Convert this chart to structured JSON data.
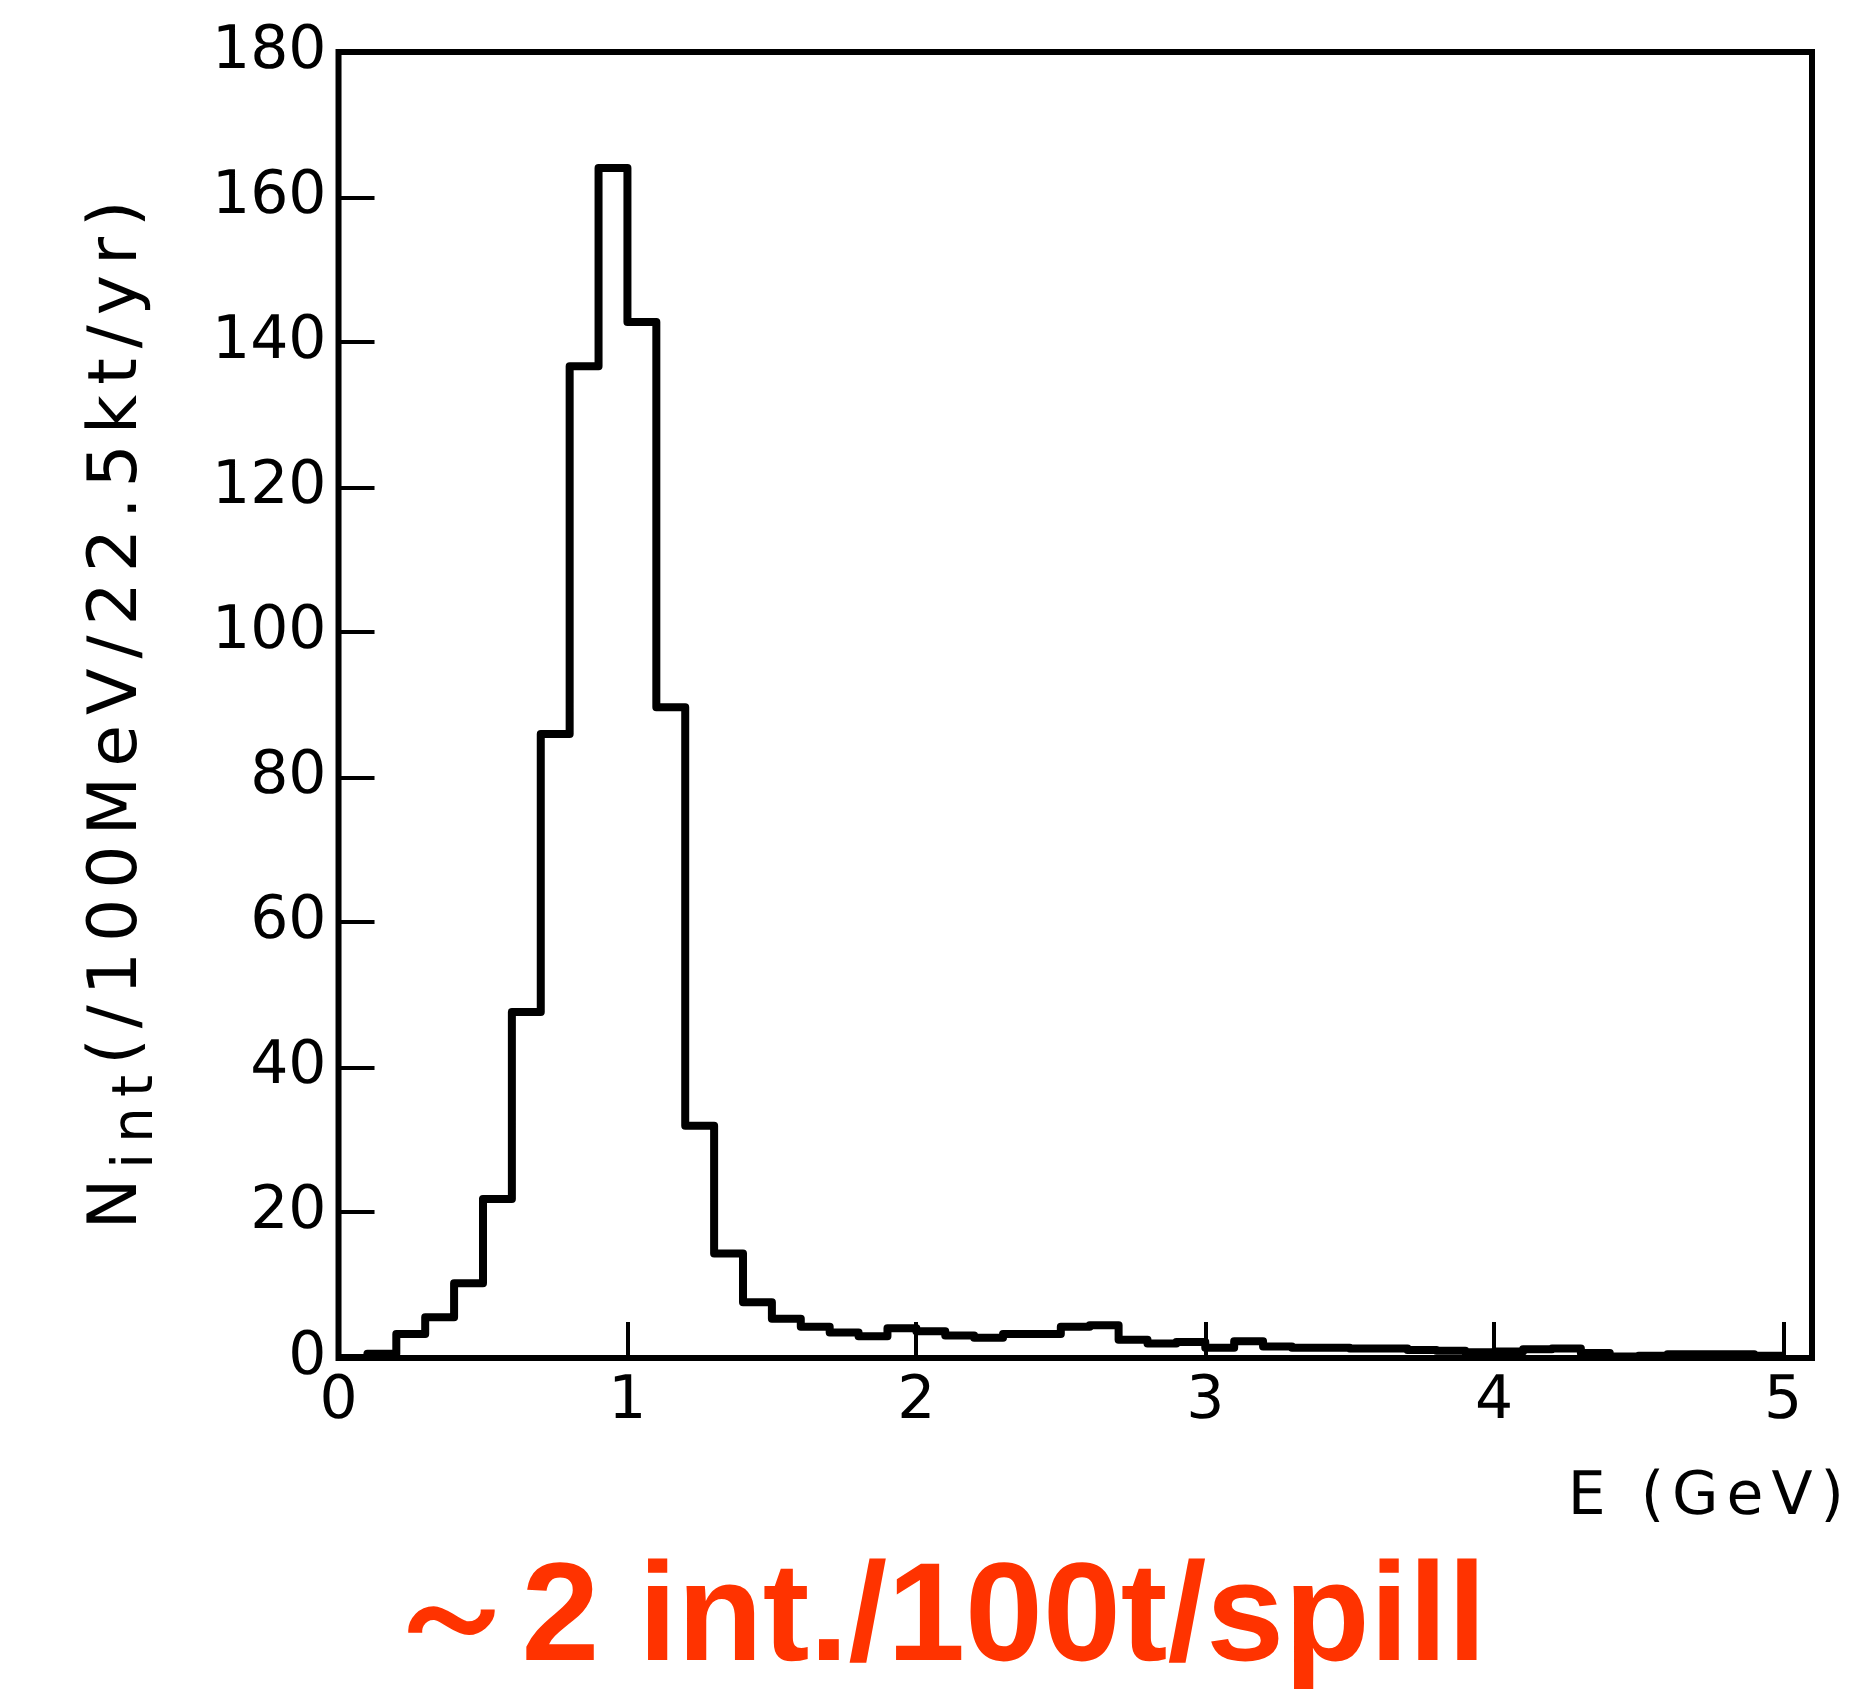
{
  "chart_data": {
    "type": "histogram",
    "xlabel": "E (GeV)",
    "ylabel": "N$_{int}$(/100MeV/22.5kt/yr)",
    "bins": [
      0,
      0.1,
      0.2,
      0.3,
      0.4,
      0.5,
      0.6,
      0.7,
      0.8,
      0.9,
      1.0,
      1.1,
      1.2,
      1.3,
      1.4,
      1.5,
      1.6,
      1.7,
      1.8,
      1.9,
      2.0,
      2.1,
      2.2,
      2.3,
      2.4,
      2.5,
      2.6,
      2.7,
      2.8,
      2.9,
      3.0,
      3.1,
      3.2,
      3.3,
      3.4,
      3.5,
      3.6,
      3.7,
      3.8,
      3.9,
      4.0,
      4.1,
      4.2,
      4.3,
      4.4,
      4.5,
      4.6,
      4.7,
      4.8,
      4.9,
      5.0
    ],
    "values": [
      0,
      0.6,
      3.3,
      5.6,
      10.3,
      21.9,
      47.7,
      86,
      136.7,
      164,
      142.8,
      89.7,
      32,
      14.4,
      7.7,
      5.4,
      4.3,
      3.5,
      3,
      4.1,
      3.7,
      3.1,
      2.8,
      3.3,
      3.3,
      4.3,
      4.5,
      2.5,
      2,
      2.2,
      1.4,
      2.3,
      1.6,
      1.4,
      1.4,
      1.3,
      1.3,
      1.1,
      1,
      0.8,
      0.9,
      1.2,
      1.3,
      0.7,
      0.2,
      0.3,
      0.5,
      0.5,
      0.5,
      0.3
    ],
    "color": "#000000",
    "xlim": [
      0,
      5.1
    ],
    "xticks": [
      0,
      1,
      2,
      3,
      4,
      5
    ],
    "ylim": [
      0,
      180
    ],
    "yticks": [
      0,
      20,
      40,
      60,
      80,
      100,
      120,
      140,
      160,
      180
    ],
    "grid": false,
    "legend": false,
    "annotations": [
      "～2 int./100t/spill"
    ]
  }
}
